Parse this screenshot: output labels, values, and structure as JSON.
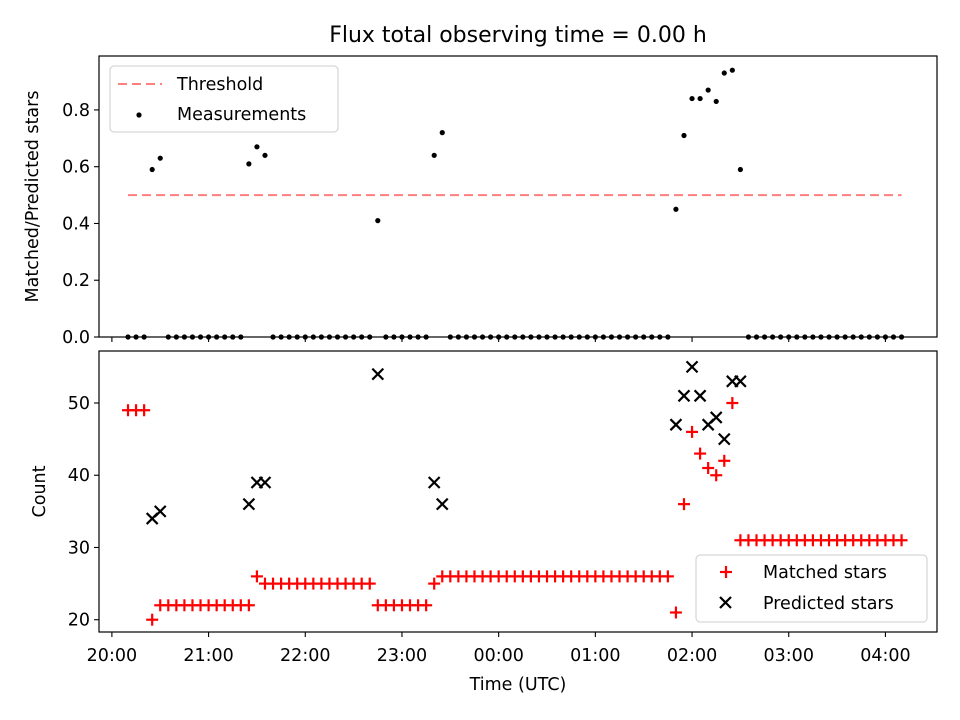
{
  "title": "Flux total observing time = 0.00 h",
  "colors": {
    "threshold": "#ff7f7f",
    "measurements": "#000000",
    "matched": "#ff0000",
    "predicted": "#000000"
  },
  "chart_data": [
    {
      "type": "scatter",
      "ylabel": "Matched/Predicted stars",
      "ylim": [
        0,
        0.99
      ],
      "yticks": [
        "0.0",
        "0.2",
        "0.4",
        "0.6",
        "0.8"
      ],
      "xlim": [
        "19:52",
        "04:32"
      ],
      "legend": {
        "position": "top-left",
        "entries": [
          "Threshold",
          "Measurements"
        ]
      },
      "threshold": {
        "name": "Threshold",
        "y": 0.5,
        "x_range": [
          "20:10",
          "04:10"
        ],
        "style": "dashed"
      },
      "series": [
        {
          "name": "Measurements",
          "points": [
            [
              "20:10",
              0
            ],
            [
              "20:15",
              0
            ],
            [
              "20:20",
              0
            ],
            [
              "20:25",
              0.59
            ],
            [
              "20:30",
              0.63
            ],
            [
              "20:35",
              0
            ],
            [
              "20:40",
              0
            ],
            [
              "20:45",
              0
            ],
            [
              "20:50",
              0
            ],
            [
              "20:55",
              0
            ],
            [
              "21:00",
              0
            ],
            [
              "21:05",
              0
            ],
            [
              "21:10",
              0
            ],
            [
              "21:15",
              0
            ],
            [
              "21:20",
              0
            ],
            [
              "21:25",
              0.61
            ],
            [
              "21:30",
              0.67
            ],
            [
              "21:35",
              0.64
            ],
            [
              "21:40",
              0
            ],
            [
              "21:45",
              0
            ],
            [
              "21:50",
              0
            ],
            [
              "21:55",
              0
            ],
            [
              "22:00",
              0
            ],
            [
              "22:05",
              0
            ],
            [
              "22:10",
              0
            ],
            [
              "22:15",
              0
            ],
            [
              "22:20",
              0
            ],
            [
              "22:25",
              0
            ],
            [
              "22:30",
              0
            ],
            [
              "22:35",
              0
            ],
            [
              "22:40",
              0
            ],
            [
              "22:45",
              0.41
            ],
            [
              "22:50",
              0
            ],
            [
              "22:55",
              0
            ],
            [
              "23:00",
              0
            ],
            [
              "23:05",
              0
            ],
            [
              "23:10",
              0
            ],
            [
              "23:15",
              0
            ],
            [
              "23:20",
              0.64
            ],
            [
              "23:25",
              0.72
            ],
            [
              "23:30",
              0
            ],
            [
              "23:35",
              0
            ],
            [
              "23:40",
              0
            ],
            [
              "23:45",
              0
            ],
            [
              "23:50",
              0
            ],
            [
              "23:55",
              0
            ],
            [
              "00:00",
              0
            ],
            [
              "00:05",
              0
            ],
            [
              "00:10",
              0
            ],
            [
              "00:15",
              0
            ],
            [
              "00:20",
              0
            ],
            [
              "00:25",
              0
            ],
            [
              "00:30",
              0
            ],
            [
              "00:35",
              0
            ],
            [
              "00:40",
              0
            ],
            [
              "00:45",
              0
            ],
            [
              "00:50",
              0
            ],
            [
              "00:55",
              0
            ],
            [
              "01:00",
              0
            ],
            [
              "01:05",
              0
            ],
            [
              "01:10",
              0
            ],
            [
              "01:15",
              0
            ],
            [
              "01:20",
              0
            ],
            [
              "01:25",
              0
            ],
            [
              "01:30",
              0
            ],
            [
              "01:35",
              0
            ],
            [
              "01:40",
              0
            ],
            [
              "01:45",
              0
            ],
            [
              "01:50",
              0.45
            ],
            [
              "01:55",
              0.71
            ],
            [
              "02:00",
              0.84
            ],
            [
              "02:05",
              0.84
            ],
            [
              "02:10",
              0.87
            ],
            [
              "02:15",
              0.83
            ],
            [
              "02:20",
              0.93
            ],
            [
              "02:25",
              0.94
            ],
            [
              "02:30",
              0.59
            ],
            [
              "02:35",
              0
            ],
            [
              "02:40",
              0
            ],
            [
              "02:45",
              0
            ],
            [
              "02:50",
              0
            ],
            [
              "02:55",
              0
            ],
            [
              "03:00",
              0
            ],
            [
              "03:05",
              0
            ],
            [
              "03:10",
              0
            ],
            [
              "03:15",
              0
            ],
            [
              "03:20",
              0
            ],
            [
              "03:25",
              0
            ],
            [
              "03:30",
              0
            ],
            [
              "03:35",
              0
            ],
            [
              "03:40",
              0
            ],
            [
              "03:45",
              0
            ],
            [
              "03:50",
              0
            ],
            [
              "03:55",
              0
            ],
            [
              "04:00",
              0
            ],
            [
              "04:05",
              0
            ],
            [
              "04:10",
              0
            ]
          ]
        }
      ]
    },
    {
      "type": "scatter",
      "xlabel": "Time (UTC)",
      "ylabel": "Count",
      "ylim": [
        18.3,
        57.2
      ],
      "yticks": [
        "20",
        "30",
        "40",
        "50"
      ],
      "xlim": [
        "19:52",
        "04:32"
      ],
      "xticks": [
        "20:00",
        "21:00",
        "22:00",
        "23:00",
        "00:00",
        "01:00",
        "02:00",
        "03:00",
        "04:00"
      ],
      "legend": {
        "position": "bottom-right",
        "entries": [
          "Matched stars",
          "Predicted stars"
        ]
      },
      "series": [
        {
          "name": "Matched stars",
          "marker": "plus",
          "points": [
            [
              "20:10",
              49
            ],
            [
              "20:15",
              49
            ],
            [
              "20:20",
              49
            ],
            [
              "20:25",
              20
            ],
            [
              "20:30",
              22
            ],
            [
              "20:35",
              22
            ],
            [
              "20:40",
              22
            ],
            [
              "20:45",
              22
            ],
            [
              "20:50",
              22
            ],
            [
              "20:55",
              22
            ],
            [
              "21:00",
              22
            ],
            [
              "21:05",
              22
            ],
            [
              "21:10",
              22
            ],
            [
              "21:15",
              22
            ],
            [
              "21:20",
              22
            ],
            [
              "21:25",
              22
            ],
            [
              "21:30",
              26
            ],
            [
              "21:35",
              25
            ],
            [
              "21:40",
              25
            ],
            [
              "21:45",
              25
            ],
            [
              "21:50",
              25
            ],
            [
              "21:55",
              25
            ],
            [
              "22:00",
              25
            ],
            [
              "22:05",
              25
            ],
            [
              "22:10",
              25
            ],
            [
              "22:15",
              25
            ],
            [
              "22:20",
              25
            ],
            [
              "22:25",
              25
            ],
            [
              "22:30",
              25
            ],
            [
              "22:35",
              25
            ],
            [
              "22:40",
              25
            ],
            [
              "22:45",
              22
            ],
            [
              "22:50",
              22
            ],
            [
              "22:55",
              22
            ],
            [
              "23:00",
              22
            ],
            [
              "23:05",
              22
            ],
            [
              "23:10",
              22
            ],
            [
              "23:15",
              22
            ],
            [
              "23:20",
              25
            ],
            [
              "23:25",
              26
            ],
            [
              "23:30",
              26
            ],
            [
              "23:35",
              26
            ],
            [
              "23:40",
              26
            ],
            [
              "23:45",
              26
            ],
            [
              "23:50",
              26
            ],
            [
              "23:55",
              26
            ],
            [
              "00:00",
              26
            ],
            [
              "00:05",
              26
            ],
            [
              "00:10",
              26
            ],
            [
              "00:15",
              26
            ],
            [
              "00:20",
              26
            ],
            [
              "00:25",
              26
            ],
            [
              "00:30",
              26
            ],
            [
              "00:35",
              26
            ],
            [
              "00:40",
              26
            ],
            [
              "00:45",
              26
            ],
            [
              "00:50",
              26
            ],
            [
              "00:55",
              26
            ],
            [
              "01:00",
              26
            ],
            [
              "01:05",
              26
            ],
            [
              "01:10",
              26
            ],
            [
              "01:15",
              26
            ],
            [
              "01:20",
              26
            ],
            [
              "01:25",
              26
            ],
            [
              "01:30",
              26
            ],
            [
              "01:35",
              26
            ],
            [
              "01:40",
              26
            ],
            [
              "01:45",
              26
            ],
            [
              "01:50",
              21
            ],
            [
              "01:55",
              36
            ],
            [
              "02:00",
              46
            ],
            [
              "02:05",
              43
            ],
            [
              "02:10",
              41
            ],
            [
              "02:15",
              40
            ],
            [
              "02:20",
              42
            ],
            [
              "02:25",
              50
            ],
            [
              "02:30",
              31
            ],
            [
              "02:35",
              31
            ],
            [
              "02:40",
              31
            ],
            [
              "02:45",
              31
            ],
            [
              "02:50",
              31
            ],
            [
              "02:55",
              31
            ],
            [
              "03:00",
              31
            ],
            [
              "03:05",
              31
            ],
            [
              "03:10",
              31
            ],
            [
              "03:15",
              31
            ],
            [
              "03:20",
              31
            ],
            [
              "03:25",
              31
            ],
            [
              "03:30",
              31
            ],
            [
              "03:35",
              31
            ],
            [
              "03:40",
              31
            ],
            [
              "03:45",
              31
            ],
            [
              "03:50",
              31
            ],
            [
              "03:55",
              31
            ],
            [
              "04:00",
              31
            ],
            [
              "04:05",
              31
            ],
            [
              "04:10",
              31
            ]
          ]
        },
        {
          "name": "Predicted stars",
          "marker": "x",
          "points": [
            [
              "20:25",
              34
            ],
            [
              "20:30",
              35
            ],
            [
              "21:25",
              36
            ],
            [
              "21:30",
              39
            ],
            [
              "21:35",
              39
            ],
            [
              "22:45",
              54
            ],
            [
              "23:20",
              39
            ],
            [
              "23:25",
              36
            ],
            [
              "01:50",
              47
            ],
            [
              "01:55",
              51
            ],
            [
              "02:00",
              55
            ],
            [
              "02:05",
              51
            ],
            [
              "02:10",
              47
            ],
            [
              "02:15",
              48
            ],
            [
              "02:20",
              45
            ],
            [
              "02:25",
              53
            ],
            [
              "02:30",
              53
            ]
          ]
        }
      ]
    }
  ]
}
